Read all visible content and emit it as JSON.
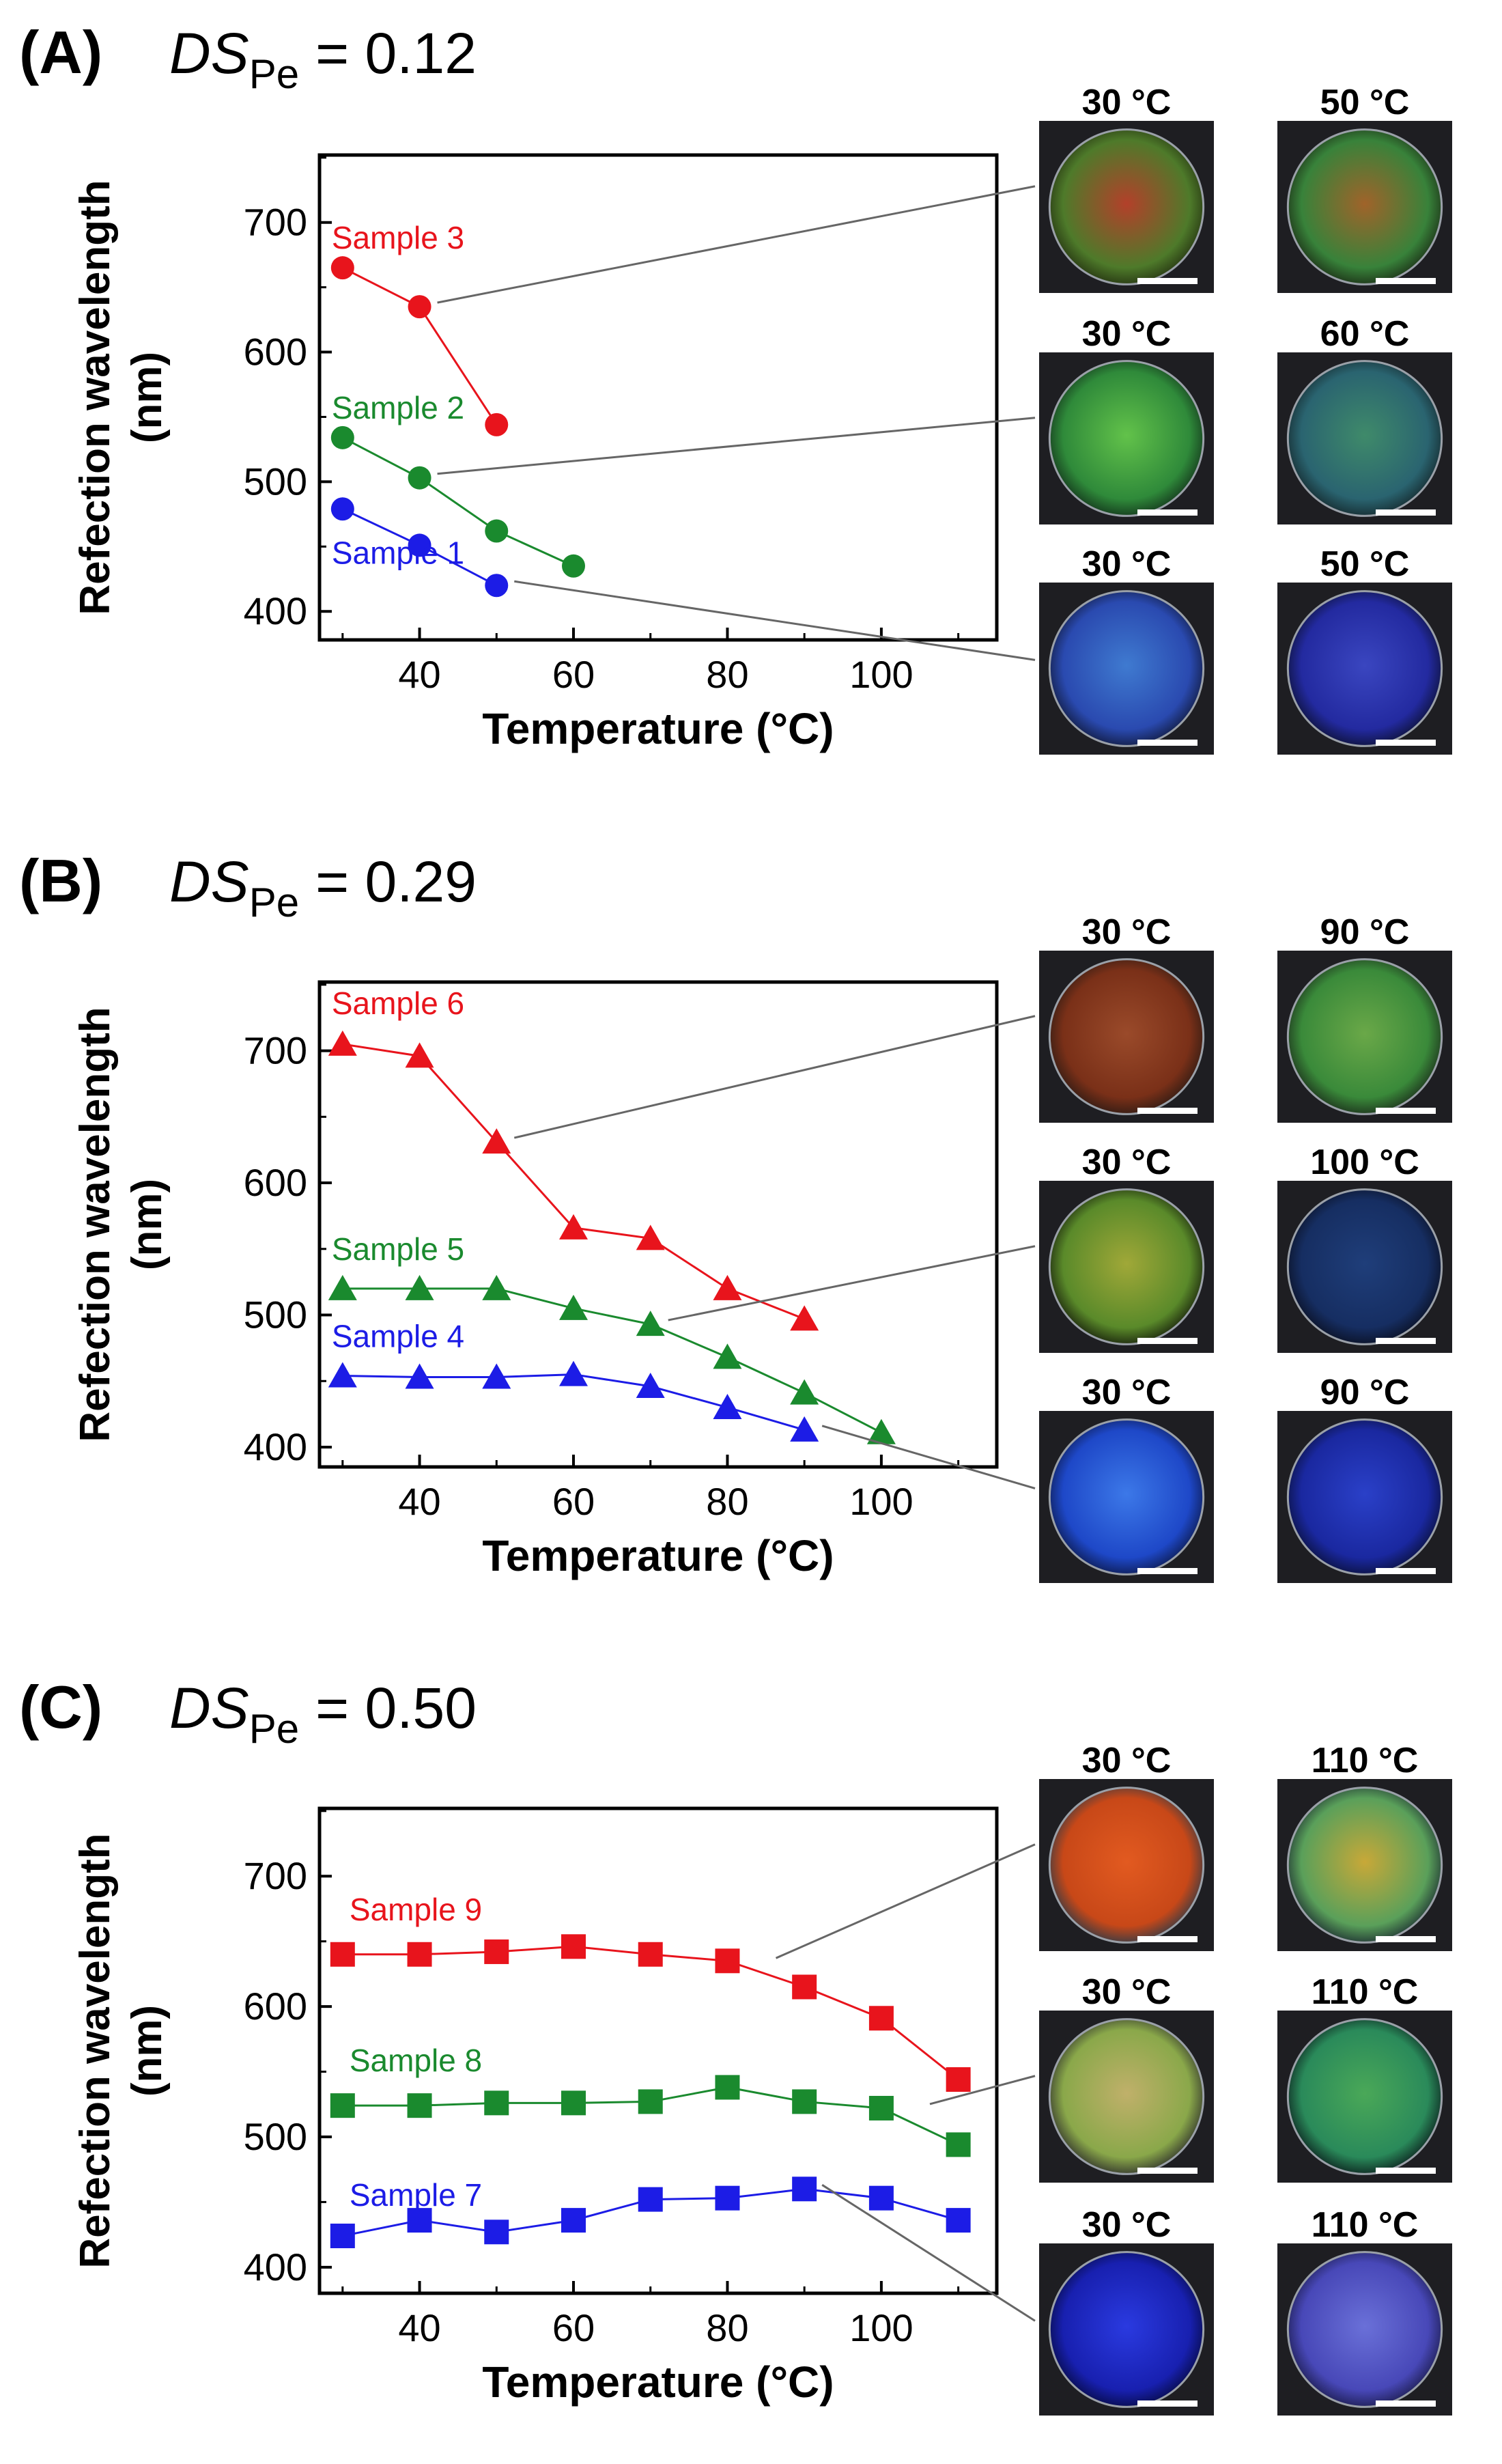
{
  "chart_data": [
    {
      "type": "scatter",
      "panel_letter": "(A)",
      "title_prefix": "DS",
      "title_subscript": "Pe",
      "title_value": "= 0.12",
      "xlabel": "Temperature (°C)",
      "ylabel": [
        "Refection wavelength",
        "(nm)"
      ],
      "xlim": [
        27,
        115
      ],
      "ylim": [
        378,
        752
      ],
      "xticks": [
        40,
        60,
        80,
        100
      ],
      "yticks": [
        400,
        500,
        600,
        700
      ],
      "marker": "circle",
      "series": [
        {
          "name": "Sample 3",
          "color": "#e8141c",
          "x": [
            30,
            40,
            50
          ],
          "y": [
            665,
            635,
            544
          ]
        },
        {
          "name": "Sample 2",
          "color": "#1a8a2e",
          "x": [
            30,
            40,
            50,
            60
          ],
          "y": [
            534,
            503,
            462,
            435
          ]
        },
        {
          "name": "Sample 1",
          "color": "#1c1ce6",
          "x": [
            30,
            40,
            50
          ],
          "y": [
            479,
            451,
            420
          ]
        }
      ],
      "photo_rows": [
        {
          "series": "Sample 3",
          "point": [
            40,
            635
          ],
          "labels": [
            "30 °C",
            "50 °C"
          ],
          "tones": [
            [
              "#b3402a",
              "#4e7a2a",
              "#233010"
            ],
            [
              "#a0632a",
              "#38823a",
              "#1a2a14"
            ]
          ]
        },
        {
          "series": "Sample 2",
          "point": [
            40,
            503
          ],
          "labels": [
            "30 °C",
            "60 °C"
          ],
          "tones": [
            [
              "#62c24a",
              "#2f8a3a",
              "#12301a"
            ],
            [
              "#3f8a6a",
              "#2a6470",
              "#14262a"
            ]
          ]
        },
        {
          "series": "Sample 1",
          "point": [
            50,
            420
          ],
          "labels": [
            "30 °C",
            "50 °C"
          ],
          "tones": [
            [
              "#3f7ad0",
              "#2a4ab0",
              "#101838"
            ],
            [
              "#3a46c0",
              "#232aa0",
              "#0c1030"
            ]
          ]
        }
      ]
    },
    {
      "type": "scatter",
      "panel_letter": "(B)",
      "title_prefix": "DS",
      "title_subscript": "Pe",
      "title_value": "= 0.29",
      "xlabel": "Temperature (°C)",
      "ylabel": [
        "Refection wavelength",
        "(nm)"
      ],
      "xlim": [
        27,
        115
      ],
      "ylim": [
        385,
        752
      ],
      "xticks": [
        40,
        60,
        80,
        100
      ],
      "yticks": [
        400,
        500,
        600,
        700
      ],
      "marker": "triangle",
      "series": [
        {
          "name": "Sample 6",
          "color": "#e8141c",
          "x": [
            30,
            40,
            50,
            60,
            70,
            80,
            90
          ],
          "y": [
            705,
            696,
            631,
            566,
            558,
            520,
            497
          ]
        },
        {
          "name": "Sample 5",
          "color": "#1a8a2e",
          "x": [
            30,
            40,
            50,
            60,
            70,
            80,
            90,
            100
          ],
          "y": [
            520,
            520,
            520,
            505,
            493,
            468,
            441,
            411
          ]
        },
        {
          "name": "Sample 4",
          "color": "#1c1ce6",
          "x": [
            30,
            40,
            50,
            60,
            70,
            80,
            90
          ],
          "y": [
            454,
            453,
            453,
            455,
            446,
            430,
            413
          ]
        }
      ],
      "photo_rows": [
        {
          "series": "Sample 6",
          "point": [
            50,
            631
          ],
          "labels": [
            "30 °C",
            "90 °C"
          ],
          "tones": [
            [
              "#9a4a2a",
              "#7a3018",
              "#2a1a14"
            ],
            [
              "#6aa848",
              "#3a8a3a",
              "#1a2a1a"
            ]
          ]
        },
        {
          "series": "Sample 5",
          "point": [
            70,
            493
          ],
          "labels": [
            "30 °C",
            "100 °C"
          ],
          "tones": [
            [
              "#a0a838",
              "#5a8a2a",
              "#141a0a"
            ],
            [
              "#1f3e7a",
              "#162e62",
              "#0a0f20"
            ]
          ]
        },
        {
          "series": "Sample 4",
          "point": [
            90,
            413
          ],
          "labels": [
            "30 °C",
            "90 °C"
          ],
          "tones": [
            [
              "#3c78e8",
              "#1e48c8",
              "#0c1848"
            ],
            [
              "#2a40c8",
              "#1a28a0",
              "#0a1038"
            ]
          ]
        }
      ]
    },
    {
      "type": "scatter",
      "panel_letter": "(C)",
      "title_prefix": "DS",
      "title_subscript": "Pe",
      "title_value": "= 0.50",
      "xlabel": "Temperature (°C)",
      "ylabel": [
        "Refection wavelength",
        "(nm)"
      ],
      "xlim": [
        27,
        115
      ],
      "ylim": [
        380,
        752
      ],
      "xticks": [
        40,
        60,
        80,
        100
      ],
      "yticks": [
        400,
        500,
        600,
        700
      ],
      "marker": "square",
      "series": [
        {
          "name": "Sample 9",
          "color": "#e8141c",
          "x": [
            30,
            40,
            50,
            60,
            70,
            80,
            90,
            100,
            110
          ],
          "y": [
            640,
            640,
            642,
            646,
            640,
            635,
            615,
            591,
            544
          ]
        },
        {
          "name": "Sample 8",
          "color": "#1a8a2e",
          "x": [
            30,
            40,
            50,
            60,
            70,
            80,
            90,
            100,
            110
          ],
          "y": [
            524,
            524,
            526,
            526,
            527,
            538,
            527,
            522,
            494
          ]
        },
        {
          "name": "Sample 7",
          "color": "#1c1ce6",
          "x": [
            30,
            40,
            50,
            60,
            70,
            80,
            90,
            100,
            110
          ],
          "y": [
            424,
            436,
            427,
            436,
            452,
            453,
            460,
            453,
            436
          ]
        }
      ],
      "photo_rows": [
        {
          "series": "Sample 9",
          "point": [
            84,
            634
          ],
          "labels": [
            "30 °C",
            "110 °C"
          ],
          "tones": [
            [
              "#e25a20",
              "#c84818",
              "#2a3a48"
            ],
            [
              "#c8a838",
              "#5aa05a",
              "#1a2a30"
            ]
          ]
        },
        {
          "series": "Sample 8",
          "point": [
            104,
            522
          ],
          "labels": [
            "30 °C",
            "110 °C"
          ],
          "tones": [
            [
              "#c0b06a",
              "#8aa84a",
              "#2a2a2a"
            ],
            [
              "#4aa858",
              "#2a8a5a",
              "#0a1a1a"
            ]
          ]
        },
        {
          "series": "Sample 7",
          "point": [
            90,
            460
          ],
          "labels": [
            "30 °C",
            "110 °C"
          ],
          "tones": [
            [
              "#2a3ae0",
              "#1820b0",
              "#060a40"
            ],
            [
              "#6a70d8",
              "#4848b8",
              "#1a1a48"
            ]
          ]
        }
      ]
    }
  ]
}
